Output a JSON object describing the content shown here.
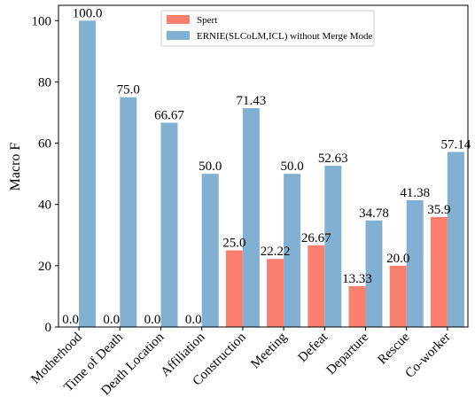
{
  "chart_data": {
    "type": "bar",
    "ylabel": "Macro F",
    "ylim": [
      0,
      105
    ],
    "yticks": [
      0,
      20,
      40,
      60,
      80,
      100
    ],
    "grid": false,
    "legend_position": "top-center",
    "categories": [
      "Motherhood",
      "Time of Death",
      "Death Location",
      "Affiliation",
      "Construction",
      "Meeting",
      "Defeat",
      "Departure",
      "Rescue",
      "Co-worker"
    ],
    "series": [
      {
        "name": "Spert",
        "color": "#fa7f6f",
        "values": [
          0.0,
          0.0,
          0.0,
          0.0,
          25.0,
          22.22,
          26.67,
          13.33,
          20.0,
          35.9
        ],
        "labels": [
          "0.0",
          "0.0",
          "0.0",
          "0.0",
          "25.0",
          "22.22",
          "26.67",
          "13.33",
          "20.0",
          "35.9"
        ]
      },
      {
        "name": "ERNIE(SLCoLM,ICL) without Merge Mode",
        "color": "#82b0d2",
        "values": [
          100.0,
          75.0,
          66.67,
          50.0,
          71.43,
          50.0,
          52.63,
          34.78,
          41.38,
          57.14
        ],
        "labels": [
          "100.0",
          "75.0",
          "66.67",
          "50.0",
          "71.43",
          "50.0",
          "52.63",
          "34.78",
          "41.38",
          "57.14"
        ]
      }
    ]
  }
}
